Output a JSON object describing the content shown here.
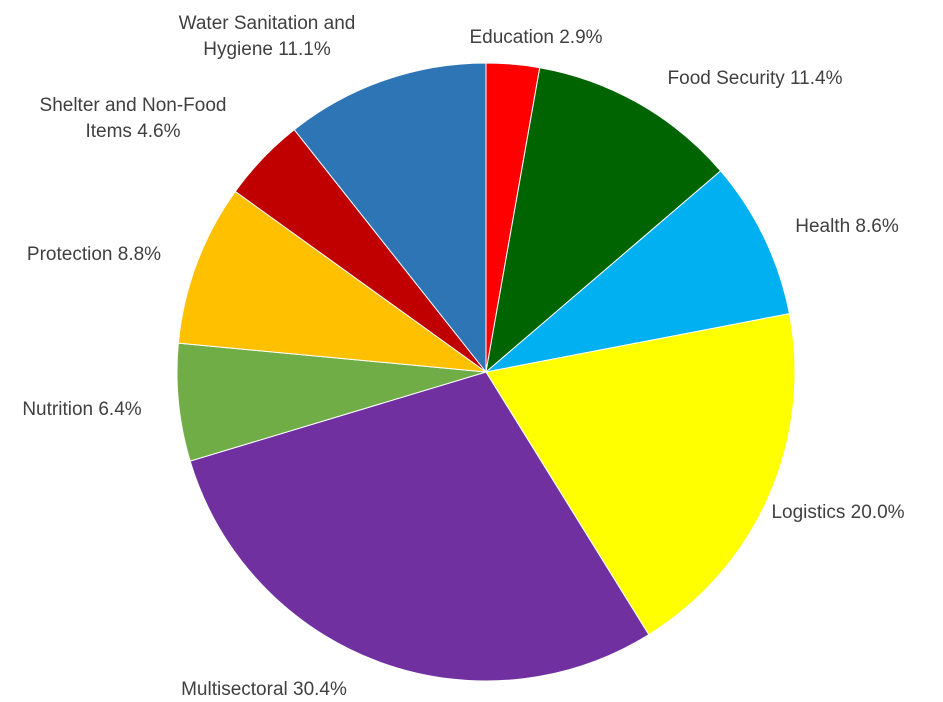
{
  "chart_data": {
    "type": "pie",
    "start_angle_deg": 0,
    "direction": "clockwise",
    "slices": [
      {
        "label": "Education",
        "value": 2.9,
        "display": "2.9%",
        "color": "#FF0000"
      },
      {
        "label": "Food Security",
        "value": 11.4,
        "display": "11.4%",
        "color": "#006400"
      },
      {
        "label": "Health",
        "value": 8.6,
        "display": "8.6%",
        "color": "#00B0F0"
      },
      {
        "label": "Logistics",
        "value": 20.0,
        "display": "20.0%",
        "color": "#FFFF00"
      },
      {
        "label": "Multisectoral",
        "value": 30.4,
        "display": "30.4%",
        "color": "#7030A0"
      },
      {
        "label": "Nutrition",
        "value": 6.4,
        "display": "6.4%",
        "color": "#70AD47"
      },
      {
        "label": "Protection",
        "value": 8.8,
        "display": "8.8%",
        "color": "#FFC000"
      },
      {
        "label": "Shelter and Non-Food Items",
        "value": 4.6,
        "display": "4.6%",
        "color": "#C00000"
      },
      {
        "label": "Water Sanitation and Hygiene",
        "value": 11.1,
        "display": "11.1%",
        "color": "#2E75B6"
      }
    ],
    "labels": [
      {
        "lines": [
          "Education 2.9%"
        ]
      },
      {
        "lines": [
          "Food Security 11.4%"
        ]
      },
      {
        "lines": [
          "Health 8.6%"
        ]
      },
      {
        "lines": [
          "Logistics 20.0%"
        ]
      },
      {
        "lines": [
          "Multisectoral 30.4%"
        ]
      },
      {
        "lines": [
          "Nutrition 6.4%"
        ]
      },
      {
        "lines": [
          "Protection 8.8%"
        ]
      },
      {
        "lines": [
          "Shelter and Non-Food",
          "Items 4.6%"
        ]
      },
      {
        "lines": [
          "Water Sanitation and",
          "Hygiene 11.1%"
        ]
      }
    ]
  }
}
